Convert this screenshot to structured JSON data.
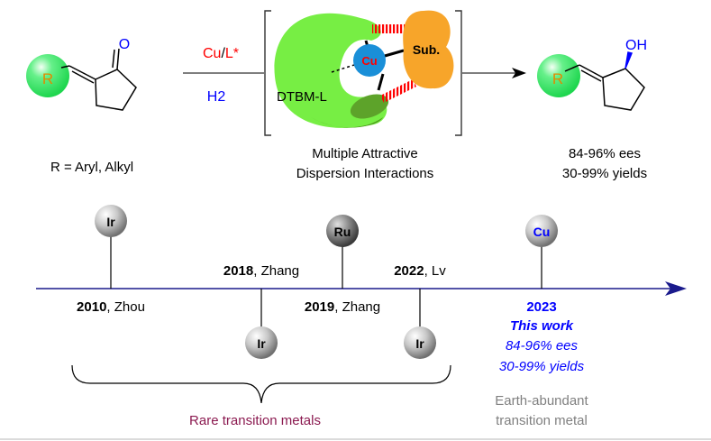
{
  "reaction": {
    "substrate_R": "R",
    "substrate_O": "O",
    "catalyst": {
      "metal": "Cu",
      "sep": "/",
      "ligand": "L*"
    },
    "reductant": "H2",
    "r_definition": "R = Aryl, Alkyl",
    "model": {
      "ligand_label": "DTBM-L",
      "metal_label": "Cu",
      "substrate_label": "Sub.",
      "caption_line1": "Multiple Attractive",
      "caption_line2": "Dispersion Interactions"
    },
    "product_R": "R",
    "product_OH": "OH",
    "result_line1": "84-96% ees",
    "result_line2": "30-99% yields"
  },
  "timeline": {
    "events": [
      {
        "metal": "Ir",
        "year": "2010",
        "author": ", Zhou"
      },
      {
        "metal": "Ir",
        "year": "2018",
        "author": ", Zhang"
      },
      {
        "metal": "Ru",
        "year": "2019",
        "author": ", Zhang"
      },
      {
        "metal": "Ir",
        "year": "2022",
        "author": ", Lv"
      },
      {
        "metal": "Cu",
        "year": "2023"
      }
    ],
    "this_work": {
      "label": "This work",
      "ees": "84-96% ees",
      "yields": "30-99% yields",
      "note_line1": "Earth-abundant",
      "note_line2": "transition metal"
    },
    "rare_label": "Rare transition metals"
  },
  "colors": {
    "red": "#ff0000",
    "blue": "#0000ff",
    "ligand_green": "#77ee44",
    "copper_blue": "#1a8fd8",
    "substrate_orange": "#f7a52a",
    "timeline_blue": "#1a1a8c",
    "rare_maroon": "#8b1a50",
    "gray_note": "#808080"
  }
}
